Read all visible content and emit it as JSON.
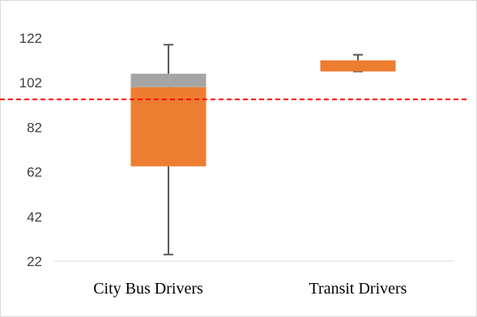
{
  "chart_data": {
    "type": "box",
    "title": "",
    "xlabel": "",
    "ylabel": "",
    "ylim": [
      22,
      130
    ],
    "yticks": [
      22,
      42,
      62,
      82,
      102,
      122
    ],
    "ytick_labels": [
      "22",
      "42",
      "62",
      "82",
      "102",
      "122"
    ],
    "grid": false,
    "legend": "none",
    "categories": [
      "City Bus Drivers",
      "Transit Drivers"
    ],
    "boxes": [
      {
        "category": "City Bus Drivers",
        "min": 25,
        "q1": 64.5,
        "median": 100,
        "q3": 106,
        "max": 119
      },
      {
        "category": "Transit Drivers",
        "min": 107,
        "q1": 107,
        "median": 107,
        "q3": 112,
        "max": 114.5
      }
    ],
    "reference_line": {
      "value": 94.5,
      "style": "dashed",
      "color": "#ff0000"
    },
    "colors": {
      "lower_box": "#ed7d31",
      "upper_box": "#a5a5a5",
      "whisker": "#595959",
      "axis": "#d9d9d9",
      "frame": "#d9d9d9"
    }
  }
}
